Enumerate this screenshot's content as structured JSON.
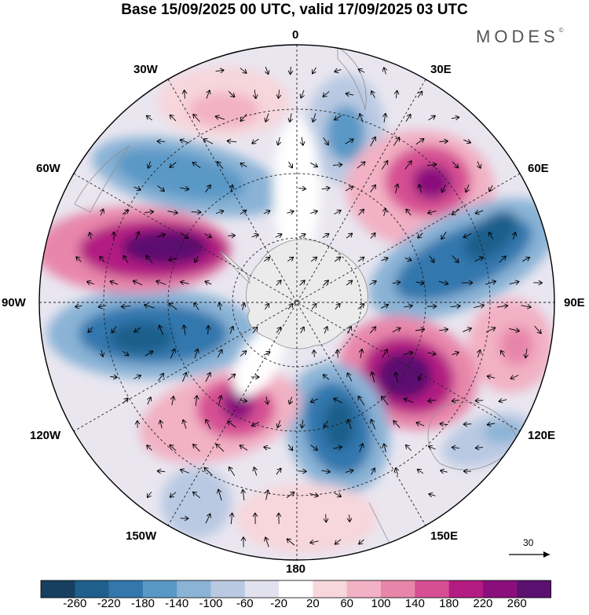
{
  "title": "Base 15/09/2025 00 UTC, valid 17/09/2025 03 UTC",
  "brand": "MODES",
  "brand_mark": "©",
  "longitude_labels": {
    "lon_0": "0",
    "lon_30e": "30E",
    "lon_60e": "60E",
    "lon_90e": "90E",
    "lon_120e": "120E",
    "lon_150e": "150E",
    "lon_180": "180",
    "lon_150w": "150W",
    "lon_120w": "120W",
    "lon_90w": "90W",
    "lon_60w": "60W",
    "lon_30w": "30W"
  },
  "reference_vector": {
    "label": "30"
  },
  "colorbar": {
    "labels": [
      "-260",
      "-220",
      "-180",
      "-140",
      "-100",
      "-60",
      "-20",
      "20",
      "60",
      "100",
      "140",
      "180",
      "220",
      "260"
    ],
    "colors": [
      "#173f5f",
      "#1f5f8b",
      "#3377ad",
      "#5a98c6",
      "#8ab3d6",
      "#b9c9e2",
      "#e2e2ef",
      "#ffffff",
      "#f7d6dc",
      "#f2b1c4",
      "#e886aa",
      "#d64f93",
      "#b21c82",
      "#8a0f7d",
      "#5c1170"
    ]
  },
  "colors": {
    "land": "#ebebeb",
    "coast": "#8f8f8f",
    "grid": "#222222",
    "arrow": "#000000"
  }
}
